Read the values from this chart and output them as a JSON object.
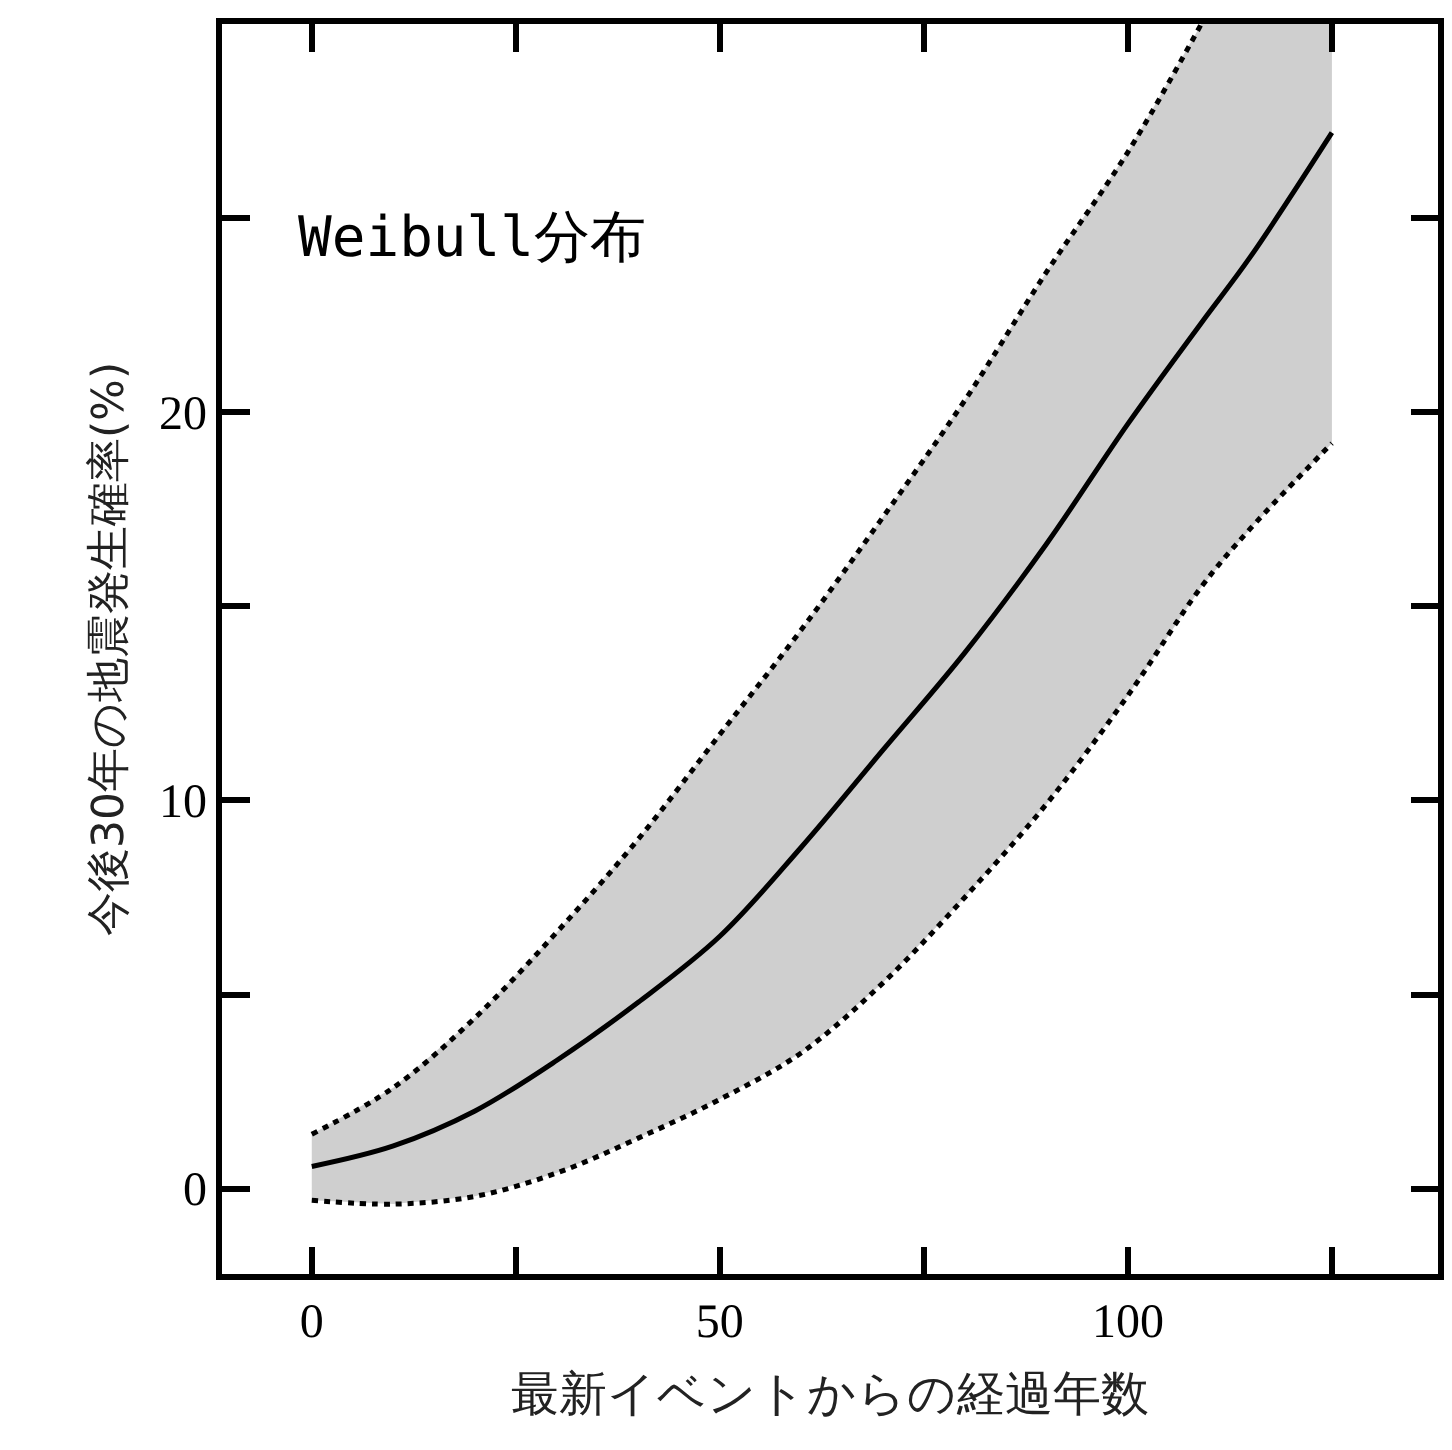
{
  "chart_data": {
    "type": "line",
    "xlabel": "最新イベントからの経過年数",
    "ylabel": "今後30年の地震発生確率(%)",
    "annotations": [
      "Weibull分布"
    ],
    "x": [
      0,
      10,
      20,
      30,
      40,
      50,
      60,
      70,
      80,
      90,
      100,
      109,
      115,
      125
    ],
    "series": [
      {
        "color": "#000000",
        "line_style": "solid",
        "values": [
          0.57,
          1.1,
          2.0,
          3.3,
          4.8,
          6.5,
          8.8,
          11.3,
          13.8,
          16.6,
          19.7,
          22.3,
          24.0,
          27.2
        ],
        "upper": [
          1.4,
          2.6,
          4.4,
          6.6,
          9.0,
          11.7,
          14.4,
          17.3,
          20.3,
          23.6,
          26.7,
          30.0,
          30.0,
          30.0
        ],
        "lower": [
          -0.3,
          -0.4,
          -0.2,
          0.4,
          1.3,
          2.3,
          3.5,
          5.3,
          7.5,
          9.9,
          12.7,
          15.5,
          17.0,
          19.2
        ]
      },
      {
        "color": "#000000",
        "line_style": "dotted",
        "values": [
          1.4,
          2.6,
          4.4,
          6.6,
          9.0,
          11.7,
          14.4,
          17.3,
          20.3,
          23.6,
          26.7,
          30.0,
          null,
          null
        ]
      },
      {
        "color": "#000000",
        "line_style": "dotted",
        "values": [
          -0.3,
          -0.4,
          -0.2,
          0.4,
          1.3,
          2.3,
          3.5,
          5.3,
          7.5,
          9.9,
          12.7,
          15.5,
          17.0,
          19.2
        ]
      }
    ],
    "xlim": [
      -11,
      138
    ],
    "ylim": [
      -2.2,
      30
    ],
    "xticks": [
      0,
      {
        "value": 25,
        "label": null
      },
      50,
      {
        "value": 75,
        "label": null
      },
      100,
      {
        "value": 125,
        "label": null
      }
    ],
    "yticks": [
      0,
      {
        "value": 5,
        "label": null
      },
      10,
      {
        "value": 15,
        "label": null
      },
      20,
      {
        "value": 25,
        "label": null
      }
    ],
    "marker": "none"
  }
}
